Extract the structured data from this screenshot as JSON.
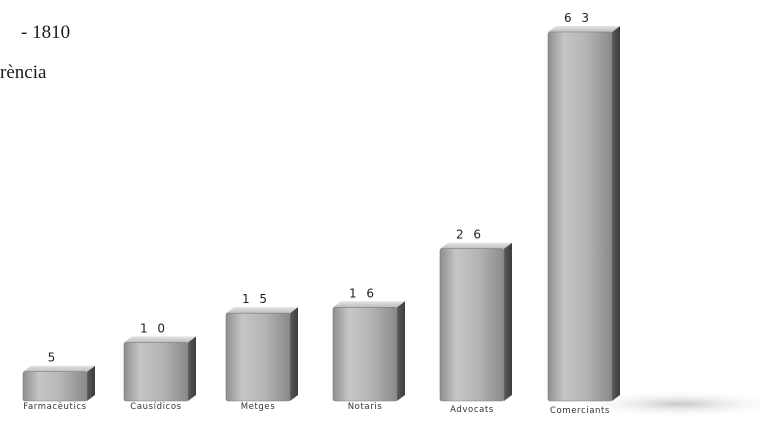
{
  "title_lines": [
    "- 1810",
    "rència"
  ],
  "chart_data": {
    "type": "bar",
    "style": "3d",
    "categories": [
      "Farmacèutics",
      "Causídicos",
      "Metges",
      "Notaris",
      "Advocats",
      "Comerciants"
    ],
    "values": [
      5,
      10,
      15,
      16,
      26,
      63
    ],
    "value_labels": [
      "5",
      "1 0",
      "1 5",
      "1 6",
      "2 6",
      "6 3"
    ],
    "ylim": [
      0,
      63
    ],
    "grid": false,
    "legend": "none",
    "bar_color": "#b8b8b8"
  }
}
